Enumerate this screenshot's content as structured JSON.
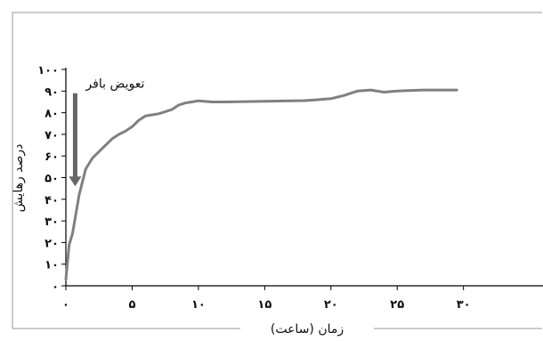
{
  "chart_data": {
    "type": "line",
    "title": "",
    "xlabel": "زمان (ساعت)",
    "ylabel": "درصد رهایش",
    "xlim": [
      0,
      36
    ],
    "ylim": [
      0,
      100
    ],
    "x_ticks": [
      0,
      5,
      10,
      15,
      20,
      25,
      30
    ],
    "x_tick_labels": [
      "۰",
      "۵",
      "۱۰",
      "۱۵",
      "۲۰",
      "۲۵",
      "۳۰"
    ],
    "y_ticks": [
      0,
      10,
      20,
      30,
      40,
      50,
      60,
      70,
      80,
      90,
      100
    ],
    "y_tick_labels": [
      "۰",
      "۱۰",
      "۲۰",
      "۳۰",
      "۴۰",
      "۵۰",
      "۶۰",
      "۷۰",
      "۸۰",
      "۹۰",
      "۱۰۰"
    ],
    "grid": false,
    "legend": "none",
    "line_color": "#808080",
    "series": [
      {
        "x": [
          0,
          0.25,
          0.5,
          1,
          1.5,
          2,
          2.5,
          3,
          3.5,
          4,
          4.5,
          5,
          5.5,
          6,
          6.5,
          7,
          7.5,
          8,
          8.5,
          9,
          9.5,
          10,
          11,
          12,
          14,
          16,
          18,
          19,
          20,
          21,
          21.5,
          22,
          23,
          24,
          25,
          26,
          27,
          28,
          29.5
        ],
        "values": [
          3,
          19,
          24,
          42,
          54,
          59,
          62,
          65,
          68,
          70,
          71.5,
          73.5,
          76.5,
          78.5,
          79,
          79.5,
          80.5,
          81.5,
          83.5,
          84.5,
          85,
          85.5,
          85,
          85,
          85.2,
          85.4,
          85.6,
          86,
          86.5,
          88,
          89,
          90,
          90.5,
          89.5,
          90,
          90.3,
          90.5,
          90.5,
          90.5
        ]
      }
    ],
    "annotations": [
      {
        "text": "تعویض بافر",
        "arrow_x": 0.7,
        "arrow_from_y": 89,
        "arrow_to_y": 46
      }
    ]
  }
}
